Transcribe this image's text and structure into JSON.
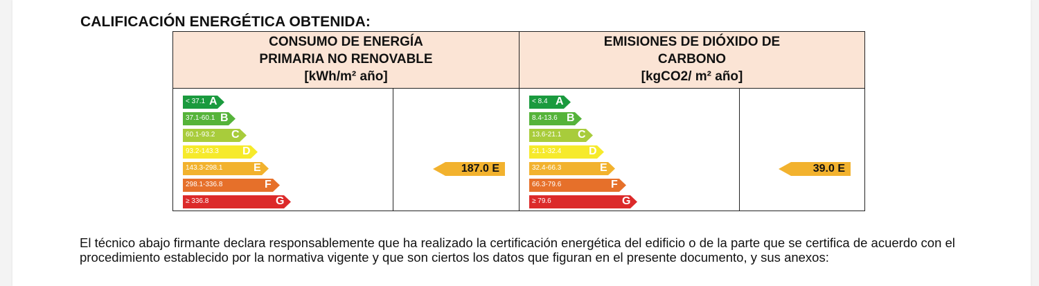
{
  "heading": "CALIFICACIÓN ENERGÉTICA OBTENIDA:",
  "energy": {
    "header": [
      "CONSUMO DE ENERGÍA",
      "PRIMARIA NO RENOVABLE",
      "[kWh/m² año]"
    ],
    "bands": [
      {
        "letter": "A",
        "range": "< 37.1",
        "color": "#1a9a3e"
      },
      {
        "letter": "B",
        "range": "37.1-60.1",
        "color": "#55b33a"
      },
      {
        "letter": "C",
        "range": "60.1-93.2",
        "color": "#a8cc3b"
      },
      {
        "letter": "D",
        "range": "93.2-143.3",
        "color": "#f6ea2b"
      },
      {
        "letter": "E",
        "range": "143.3-298.1",
        "color": "#f2b22e"
      },
      {
        "letter": "F",
        "range": "298.1-336.8",
        "color": "#e6702a"
      },
      {
        "letter": "G",
        "range": "≥ 336.8",
        "color": "#dc2a2a"
      }
    ],
    "result": "187.0 E",
    "result_band": "E"
  },
  "emissions": {
    "header": [
      "EMISIONES DE DIÓXIDO DE",
      "CARBONO",
      "[kgCO2/ m² año]"
    ],
    "bands": [
      {
        "letter": "A",
        "range": "< 8.4",
        "color": "#1a9a3e"
      },
      {
        "letter": "B",
        "range": "8.4-13.6",
        "color": "#55b33a"
      },
      {
        "letter": "C",
        "range": "13.6-21.1",
        "color": "#a8cc3b"
      },
      {
        "letter": "D",
        "range": "21.1-32.4",
        "color": "#f6ea2b"
      },
      {
        "letter": "E",
        "range": "32.4-66.3",
        "color": "#f2b22e"
      },
      {
        "letter": "F",
        "range": "66.3-79.6",
        "color": "#e6702a"
      },
      {
        "letter": "G",
        "range": "≥ 79.6",
        "color": "#dc2a2a"
      }
    ],
    "result": "39.0 E",
    "result_band": "E"
  },
  "result_color": "#f2b22e",
  "declaration": [
    "El técnico abajo firmante declara responsablemente que ha realizado la certificación energética del edificio o de la parte que se certifica de acuerdo con el procedimiento establecido por la normativa vigente y que son ciertos los datos que figuran en el presente documento, y sus anexos:"
  ]
}
